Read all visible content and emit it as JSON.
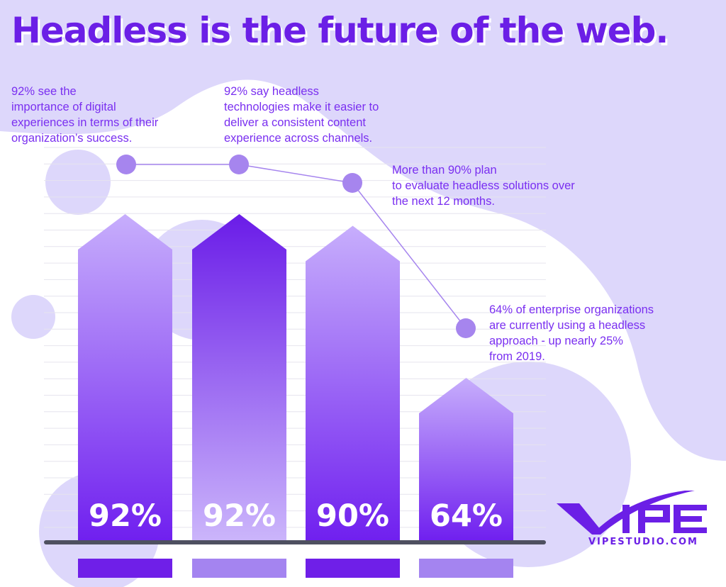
{
  "title": "Headless is the future of the web.",
  "colors": {
    "accent": "#6b1fe6",
    "dot": "#a685ee",
    "background": "#ddd7fb",
    "baseline": "#4e5060"
  },
  "chart_data": {
    "type": "bar",
    "categories": [
      "92% see the importance of digital experiences in terms of their organization's success.",
      "92% say headless technologies make it easier to deliver a consistent content experience across channels.",
      "More than 90% plan to evaluate headless solutions over the next 12 months.",
      "64% of enterprise organizations are currently using a headless approach - up nearly 25% from 2019."
    ],
    "values": [
      92,
      92,
      90,
      64
    ],
    "data_labels": [
      "92%",
      "92%",
      "90%",
      "64%"
    ],
    "title": "Headless is the future of the web.",
    "grid": true,
    "bar_colors": [
      "#7424f0",
      "#c8b0fb",
      "#7424f0",
      "#7424f0"
    ],
    "legend_colors": [
      "#6f1fe8",
      "#a484f0",
      "#6f1fe8",
      "#a484f0"
    ]
  },
  "notes": [
    "92% see the\nimportance of digital\nexperiences in terms of their\norganization’s success.",
    "92% say headless\ntechnologies make it easier to\ndeliver a consistent content\nexperience across channels.",
    "More than 90% plan\nto evaluate headless solutions over\nthe next 12 months.",
    "64% of enterprise organizations\nare currently using a headless\napproach - up nearly 25%\nfrom 2019."
  ],
  "logo": {
    "text": "VIPE",
    "url": "VIPESTUDIO.COM"
  }
}
